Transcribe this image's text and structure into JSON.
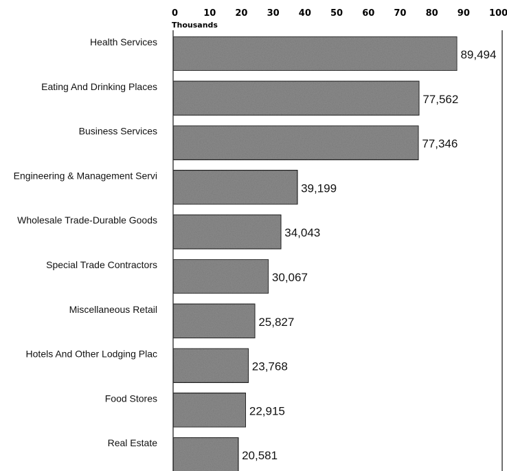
{
  "chart_data": {
    "type": "bar",
    "orientation": "horizontal",
    "x_axis_position": "top",
    "x_axis_unit_label": "Thousands",
    "xlim": [
      0,
      100
    ],
    "xticks": [
      "0",
      "10",
      "20",
      "30",
      "40",
      "50",
      "60",
      "70",
      "80",
      "90",
      "100"
    ],
    "categories": [
      "Health Services",
      "Eating And Drinking Places",
      "Business Services",
      "Engineering & Management Servi",
      "Wholesale Trade-Durable Goods",
      "Special Trade Contractors",
      "Miscellaneous Retail",
      "Hotels And  Other Lodging Plac",
      "Food Stores",
      "Real Estate"
    ],
    "values": [
      89.494,
      77.562,
      77.346,
      39.199,
      34.043,
      30.067,
      25.827,
      23.768,
      22.915,
      20.581
    ],
    "value_labels": [
      "89,494",
      "77,562",
      "77,346",
      "39,199",
      "34,043",
      "30,067",
      "25,827",
      "23,768",
      "22,915",
      "20,581"
    ],
    "grid": false,
    "legend": "none",
    "bar_color": "#8c8c8c",
    "bar_edge_color": "#222222"
  }
}
